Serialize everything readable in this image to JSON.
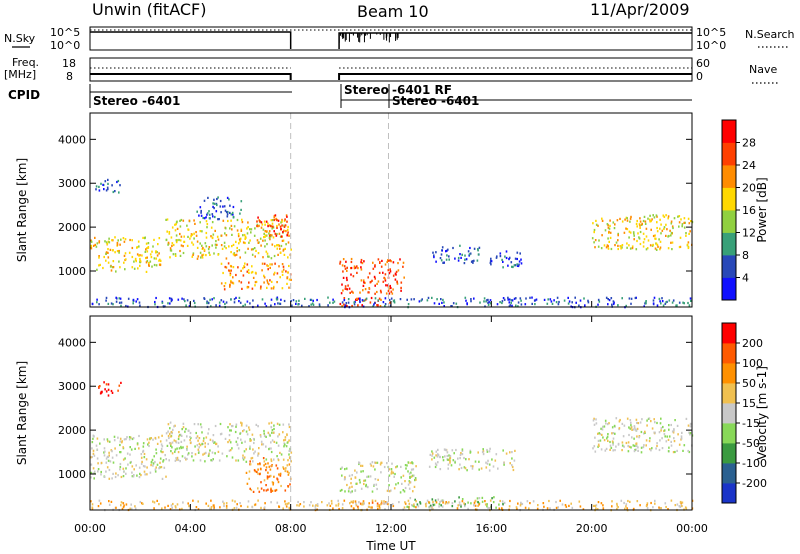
{
  "header": {
    "radar_title": "Unwin (fitACF)",
    "beam_title": "Beam 10",
    "date_title": "11/Apr/2009"
  },
  "strips": {
    "nsky_label": "N.Sky",
    "nsearch_label": "N.Search",
    "nsky_ticks": [
      "10^5",
      "10^0"
    ],
    "nsearch_ticks": [
      "10^5",
      "10^0"
    ],
    "freq_label_1": "Freq.",
    "freq_label_2": "[MHz]",
    "freq_ticks": [
      "18",
      "8"
    ],
    "nave_label": "Nave",
    "nave_ticks": [
      "60",
      "0"
    ],
    "cpid_label": "CPID",
    "cpid_segments": [
      {
        "label": "Stereo -6401",
        "start_hour": 0.0
      },
      {
        "label": "Stereo",
        "start_hour": 9.93
      },
      {
        "label": "-6401 RF",
        "start_hour": 11.9
      },
      {
        "label": "Stereo -6401",
        "start_hour": 11.9
      }
    ]
  },
  "chart_data": [
    {
      "type": "heatmap",
      "title": "",
      "xlabel": "Time UT",
      "ylabel": "Slant Range [km]",
      "xlim": [
        0,
        24
      ],
      "ylim": [
        180,
        4600
      ],
      "x_ticks": [
        "00:00",
        "04:00",
        "08:00",
        "12:00",
        "16:00",
        "20:00",
        "00:00"
      ],
      "y_ticks": [
        1000,
        2000,
        3000,
        4000
      ],
      "data_gaps_hours": [
        [
          8.0,
          9.93
        ]
      ],
      "dashed_markers_hours": [
        8.0,
        11.9
      ],
      "colorbar": {
        "label": "Power [dB]",
        "ticks": [
          4,
          8,
          12,
          16,
          20,
          24,
          28
        ],
        "colors": [
          "#1010ff",
          "#2848b8",
          "#38a078",
          "#90d040",
          "#ffd800",
          "#ff8c00",
          "#ff4000",
          "#ff0000"
        ]
      },
      "scatter_regions": [
        {
          "t0": 0.0,
          "t1": 2.8,
          "r0": 1000,
          "r1": 1800,
          "level": 4
        },
        {
          "t0": 0.2,
          "t1": 1.2,
          "r0": 2800,
          "r1": 3150,
          "level": 1
        },
        {
          "t0": 3.0,
          "t1": 8.0,
          "r0": 1300,
          "r1": 2200,
          "level": 4
        },
        {
          "t0": 4.2,
          "t1": 6.0,
          "r0": 2200,
          "r1": 2700,
          "level": 1
        },
        {
          "t0": 5.2,
          "t1": 8.0,
          "r0": 600,
          "r1": 1200,
          "level": 5
        },
        {
          "t0": 6.6,
          "t1": 8.0,
          "r0": 1800,
          "r1": 2300,
          "level": 6
        },
        {
          "t0": 9.93,
          "t1": 12.5,
          "r0": 500,
          "r1": 1300,
          "level": 6
        },
        {
          "t0": 9.93,
          "t1": 12.0,
          "r0": 220,
          "r1": 420,
          "level": 6
        },
        {
          "t0": 13.5,
          "t1": 15.5,
          "r0": 1200,
          "r1": 1600,
          "level": 1
        },
        {
          "t0": 15.8,
          "t1": 17.2,
          "r0": 1100,
          "r1": 1500,
          "level": 1
        },
        {
          "t0": 20.0,
          "t1": 24.0,
          "r0": 1500,
          "r1": 2300,
          "level": 4
        },
        {
          "t0": 0.0,
          "t1": 24.0,
          "r0": 200,
          "r1": 420,
          "level": 1
        }
      ]
    },
    {
      "type": "heatmap",
      "title": "",
      "xlabel": "Time UT",
      "ylabel": "Slant Range [km]",
      "xlim": [
        0,
        24
      ],
      "ylim": [
        180,
        4600
      ],
      "x_ticks": [
        "00:00",
        "04:00",
        "08:00",
        "12:00",
        "16:00",
        "20:00",
        "00:00"
      ],
      "y_ticks": [
        1000,
        2000,
        3000,
        4000
      ],
      "data_gaps_hours": [
        [
          8.0,
          9.93
        ]
      ],
      "dashed_markers_hours": [
        8.0,
        11.9
      ],
      "colorbar": {
        "label": "Velocity [m s-1]",
        "ticks": [
          200,
          100,
          50,
          15,
          -15,
          -50,
          -100,
          -200
        ],
        "colors": [
          "#1a34c8",
          "#2a6090",
          "#3a9a40",
          "#88d858",
          "#c8c8c8",
          "#f0c050",
          "#ff9000",
          "#ff5a00",
          "#ff0000"
        ]
      },
      "scatter_regions": [
        {
          "t0": 0.0,
          "t1": 3.0,
          "r0": 900,
          "r1": 1900,
          "level": 4
        },
        {
          "t0": 0.3,
          "t1": 1.2,
          "r0": 2800,
          "r1": 3150,
          "level": 8
        },
        {
          "t0": 3.0,
          "t1": 8.0,
          "r0": 1300,
          "r1": 2200,
          "level": 4
        },
        {
          "t0": 6.2,
          "t1": 8.0,
          "r0": 600,
          "r1": 1400,
          "level": 6
        },
        {
          "t0": 9.93,
          "t1": 13.0,
          "r0": 600,
          "r1": 1300,
          "level": 4
        },
        {
          "t0": 10.2,
          "t1": 12.0,
          "r0": 220,
          "r1": 420,
          "level": 6
        },
        {
          "t0": 12.5,
          "t1": 16.5,
          "r0": 250,
          "r1": 500,
          "level": 3
        },
        {
          "t0": 13.5,
          "t1": 17.0,
          "r0": 1100,
          "r1": 1600,
          "level": 4
        },
        {
          "t0": 20.0,
          "t1": 24.0,
          "r0": 1500,
          "r1": 2300,
          "level": 4
        },
        {
          "t0": 0.0,
          "t1": 24.0,
          "r0": 200,
          "r1": 420,
          "level": 5
        }
      ]
    }
  ]
}
